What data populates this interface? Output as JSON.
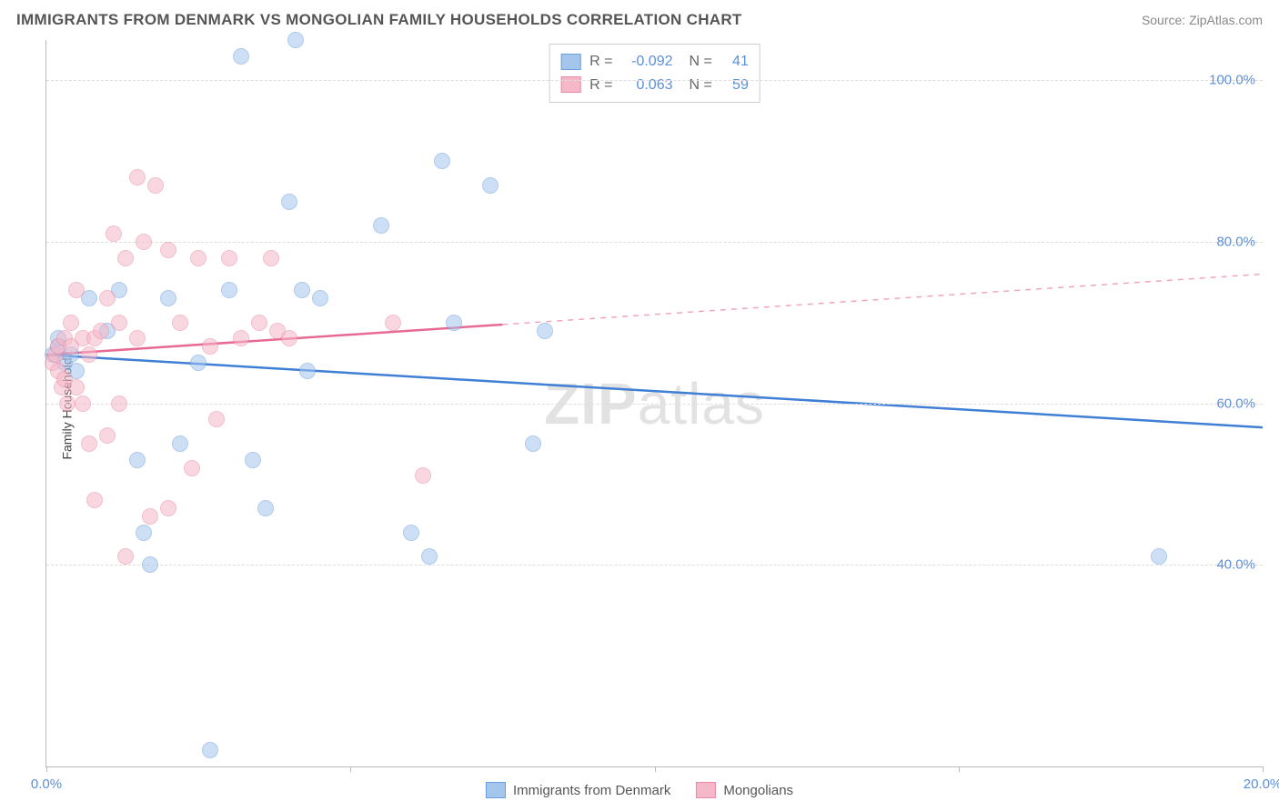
{
  "title": "IMMIGRANTS FROM DENMARK VS MONGOLIAN FAMILY HOUSEHOLDS CORRELATION CHART",
  "source": "Source: ZipAtlas.com",
  "watermark_left": "ZIP",
  "watermark_right": "atlas",
  "chart": {
    "type": "scatter",
    "ylabel": "Family Households",
    "xlim": [
      0,
      20
    ],
    "ylim": [
      15,
      105
    ],
    "yticks": [
      40,
      60,
      80,
      100
    ],
    "ytick_labels": [
      "40.0%",
      "60.0%",
      "80.0%",
      "100.0%"
    ],
    "xticks": [
      0,
      10,
      20
    ],
    "xtick_labels": [
      "0.0%",
      "",
      "20.0%"
    ],
    "xtick_minor": [
      5,
      15
    ],
    "grid_color": "#dddddd",
    "axis_color": "#bbbbbb",
    "background_color": "#ffffff"
  },
  "series": [
    {
      "name": "Immigrants from Denmark",
      "fill": "#a5c6ec",
      "stroke": "#6d9fde",
      "line_color": "#3f7fd6",
      "R": "-0.092",
      "N": "41",
      "trend": {
        "y_at_x0": 66,
        "y_at_x20": 57,
        "solid_until_x": 20
      },
      "points": [
        [
          0.1,
          66
        ],
        [
          0.2,
          67
        ],
        [
          0.3,
          65
        ],
        [
          0.4,
          66
        ],
        [
          0.5,
          64
        ],
        [
          0.2,
          68
        ],
        [
          0.7,
          73
        ],
        [
          1.0,
          69
        ],
        [
          1.2,
          74
        ],
        [
          1.5,
          53
        ],
        [
          1.6,
          44
        ],
        [
          1.7,
          40
        ],
        [
          2.0,
          73
        ],
        [
          2.2,
          55
        ],
        [
          2.5,
          65
        ],
        [
          2.7,
          17
        ],
        [
          3.0,
          74
        ],
        [
          3.2,
          103
        ],
        [
          3.4,
          53
        ],
        [
          3.6,
          47
        ],
        [
          4.0,
          85
        ],
        [
          4.1,
          105
        ],
        [
          4.2,
          74
        ],
        [
          4.3,
          64
        ],
        [
          4.5,
          73
        ],
        [
          5.5,
          82
        ],
        [
          6.0,
          44
        ],
        [
          6.3,
          41
        ],
        [
          6.5,
          90
        ],
        [
          6.7,
          70
        ],
        [
          7.3,
          87
        ],
        [
          8.0,
          55
        ],
        [
          8.2,
          69
        ],
        [
          18.3,
          41
        ]
      ]
    },
    {
      "name": "Mongolians",
      "fill": "#f4b8c8",
      "stroke": "#eb8aa6",
      "line_color": "#e76a93",
      "R": "0.063",
      "N": "59",
      "trend": {
        "y_at_x0": 66,
        "y_at_x20": 76,
        "solid_until_x": 7.5
      },
      "points": [
        [
          0.1,
          65
        ],
        [
          0.15,
          66
        ],
        [
          0.2,
          64
        ],
        [
          0.2,
          67
        ],
        [
          0.25,
          62
        ],
        [
          0.3,
          63
        ],
        [
          0.3,
          68
        ],
        [
          0.35,
          60
        ],
        [
          0.4,
          67
        ],
        [
          0.4,
          70
        ],
        [
          0.5,
          62
        ],
        [
          0.5,
          74
        ],
        [
          0.6,
          60
        ],
        [
          0.6,
          68
        ],
        [
          0.7,
          55
        ],
        [
          0.7,
          66
        ],
        [
          0.8,
          48
        ],
        [
          0.8,
          68
        ],
        [
          0.9,
          69
        ],
        [
          1.0,
          56
        ],
        [
          1.0,
          73
        ],
        [
          1.1,
          81
        ],
        [
          1.2,
          70
        ],
        [
          1.2,
          60
        ],
        [
          1.3,
          78
        ],
        [
          1.3,
          41
        ],
        [
          1.5,
          88
        ],
        [
          1.5,
          68
        ],
        [
          1.6,
          80
        ],
        [
          1.7,
          46
        ],
        [
          1.8,
          87
        ],
        [
          2.0,
          79
        ],
        [
          2.0,
          47
        ],
        [
          2.2,
          70
        ],
        [
          2.4,
          52
        ],
        [
          2.5,
          78
        ],
        [
          2.7,
          67
        ],
        [
          2.8,
          58
        ],
        [
          3.0,
          78
        ],
        [
          3.2,
          68
        ],
        [
          3.5,
          70
        ],
        [
          3.7,
          78
        ],
        [
          3.8,
          69
        ],
        [
          4.0,
          68
        ],
        [
          5.7,
          70
        ],
        [
          6.2,
          51
        ]
      ]
    }
  ],
  "legend_top_labels": {
    "R": "R =",
    "N": "N ="
  },
  "legend_bottom": [
    {
      "label": "Immigrants from Denmark",
      "fill": "#a5c6ec",
      "stroke": "#6d9fde"
    },
    {
      "label": "Mongolians",
      "fill": "#f4b8c8",
      "stroke": "#eb8aa6"
    }
  ]
}
